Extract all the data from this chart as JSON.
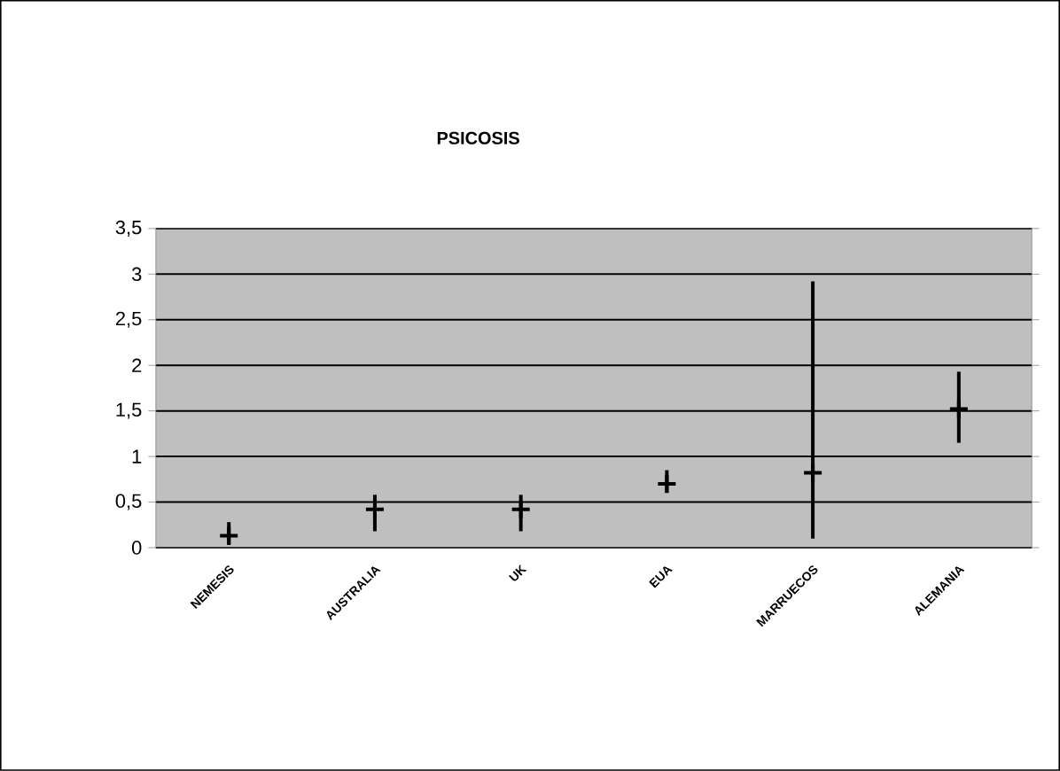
{
  "chart_data": {
    "type": "scatter",
    "title": "PSICOSIS",
    "categories": [
      "NEMESIS",
      "AUSTRALIA",
      "UK",
      "EUA",
      "MARRUECOS",
      "ALEMANIA"
    ],
    "values": [
      0.13,
      0.42,
      0.42,
      0.7,
      0.82,
      1.52
    ],
    "errors": [
      [
        0.03,
        0.28
      ],
      [
        0.18,
        0.58
      ],
      [
        0.18,
        0.58
      ],
      [
        0.6,
        0.85
      ],
      [
        0.1,
        2.92
      ],
      [
        1.15,
        1.93
      ]
    ],
    "color": "#000000",
    "marker": "cross",
    "ylim": [
      0,
      3.5
    ],
    "yticks": [
      0,
      {
        "value": 0.5,
        "label": "0,5"
      },
      1,
      {
        "value": 1.5,
        "label": "1,5"
      },
      2,
      {
        "value": 2.5,
        "label": "2,5"
      },
      3,
      {
        "value": 3.5,
        "label": "3,5"
      }
    ],
    "grid": "y"
  }
}
